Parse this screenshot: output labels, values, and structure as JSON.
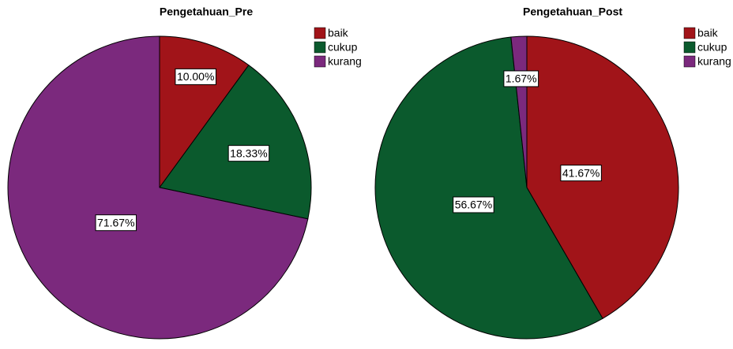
{
  "chart_data": [
    {
      "type": "pie",
      "title": "Pengetahuan_Pre",
      "categories": [
        "baik",
        "cukup",
        "kurang"
      ],
      "values": [
        10,
        18.33,
        71.67
      ],
      "value_labels": [
        "10.00%",
        "18.33%",
        "71.67%"
      ],
      "colors": [
        "#a11419",
        "#0b5a2d",
        "#7b297d"
      ],
      "legend": "top-right"
    },
    {
      "type": "pie",
      "title": "Pengetahuan_Post",
      "categories": [
        "baik",
        "cukup",
        "kurang"
      ],
      "values": [
        41.67,
        56.67,
        1.67
      ],
      "value_labels": [
        "41.67%",
        "56.67%",
        "1.67%"
      ],
      "colors": [
        "#a11419",
        "#0b5a2d",
        "#7b297d"
      ],
      "legend": "top-right"
    }
  ]
}
